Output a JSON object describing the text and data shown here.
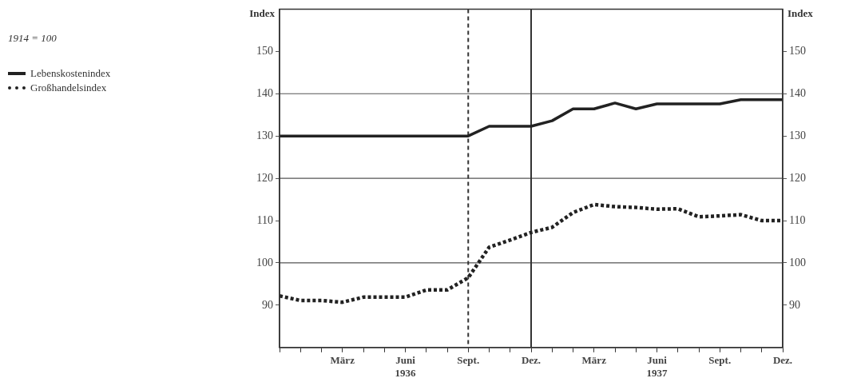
{
  "chart_data": {
    "type": "line",
    "annotations": [
      "1914 = 100"
    ],
    "ylabel": "Index",
    "y2label": "Index",
    "legend": "top left",
    "marker": "none",
    "categories": [
      null,
      null,
      null,
      "März",
      null,
      null,
      "Juni\n1936",
      null,
      null,
      "Sept.",
      null,
      null,
      "Dez.",
      null,
      null,
      "März",
      null,
      null,
      "Juni\n1937",
      null,
      null,
      "Sept.",
      null,
      null,
      "Dez."
    ],
    "series": [
      {
        "name": "Lebenskostenindex",
        "color": "#222222",
        "line_style": "solid",
        "values": [
          130,
          130,
          130,
          130,
          130,
          130,
          130,
          130,
          130,
          130,
          132.3,
          132.3,
          132.3,
          133.6,
          136.4,
          136.4,
          137.8,
          136.4,
          137.6,
          137.6,
          137.6,
          137.6,
          138.6,
          138.6,
          138.6
        ]
      },
      {
        "name": "Großhandelsindex",
        "color": "#222222",
        "line_style": "dotted",
        "values": [
          92.2,
          91.1,
          91.1,
          90.7,
          91.9,
          91.9,
          91.9,
          93.6,
          93.6,
          96.5,
          103.7,
          105.4,
          107.2,
          108.4,
          111.9,
          113.8,
          113.3,
          113.1,
          112.7,
          112.8,
          110.9,
          111.1,
          111.4,
          110,
          110
        ]
      }
    ],
    "ylim": [
      80,
      160
    ],
    "yticks": [
      90,
      100,
      110,
      120,
      130,
      140,
      150
    ],
    "y2lim": [
      80,
      160
    ],
    "y2ticks": [
      90,
      100,
      110,
      120,
      130,
      140,
      150
    ],
    "ref_lines": [
      {
        "axis": "y",
        "value": 100,
        "color": "#555555",
        "line_style": "solid"
      },
      {
        "axis": "y",
        "value": 120,
        "color": "#555555",
        "line_style": "solid"
      },
      {
        "axis": "y",
        "value": 140,
        "color": "#555555",
        "line_style": "solid"
      },
      {
        "axis": "x",
        "value": "Sept.",
        "color": "#333333",
        "line_style": "dashed"
      },
      {
        "axis": "x",
        "value": "Dez.",
        "color": "#333333",
        "line_style": "solid"
      }
    ]
  }
}
